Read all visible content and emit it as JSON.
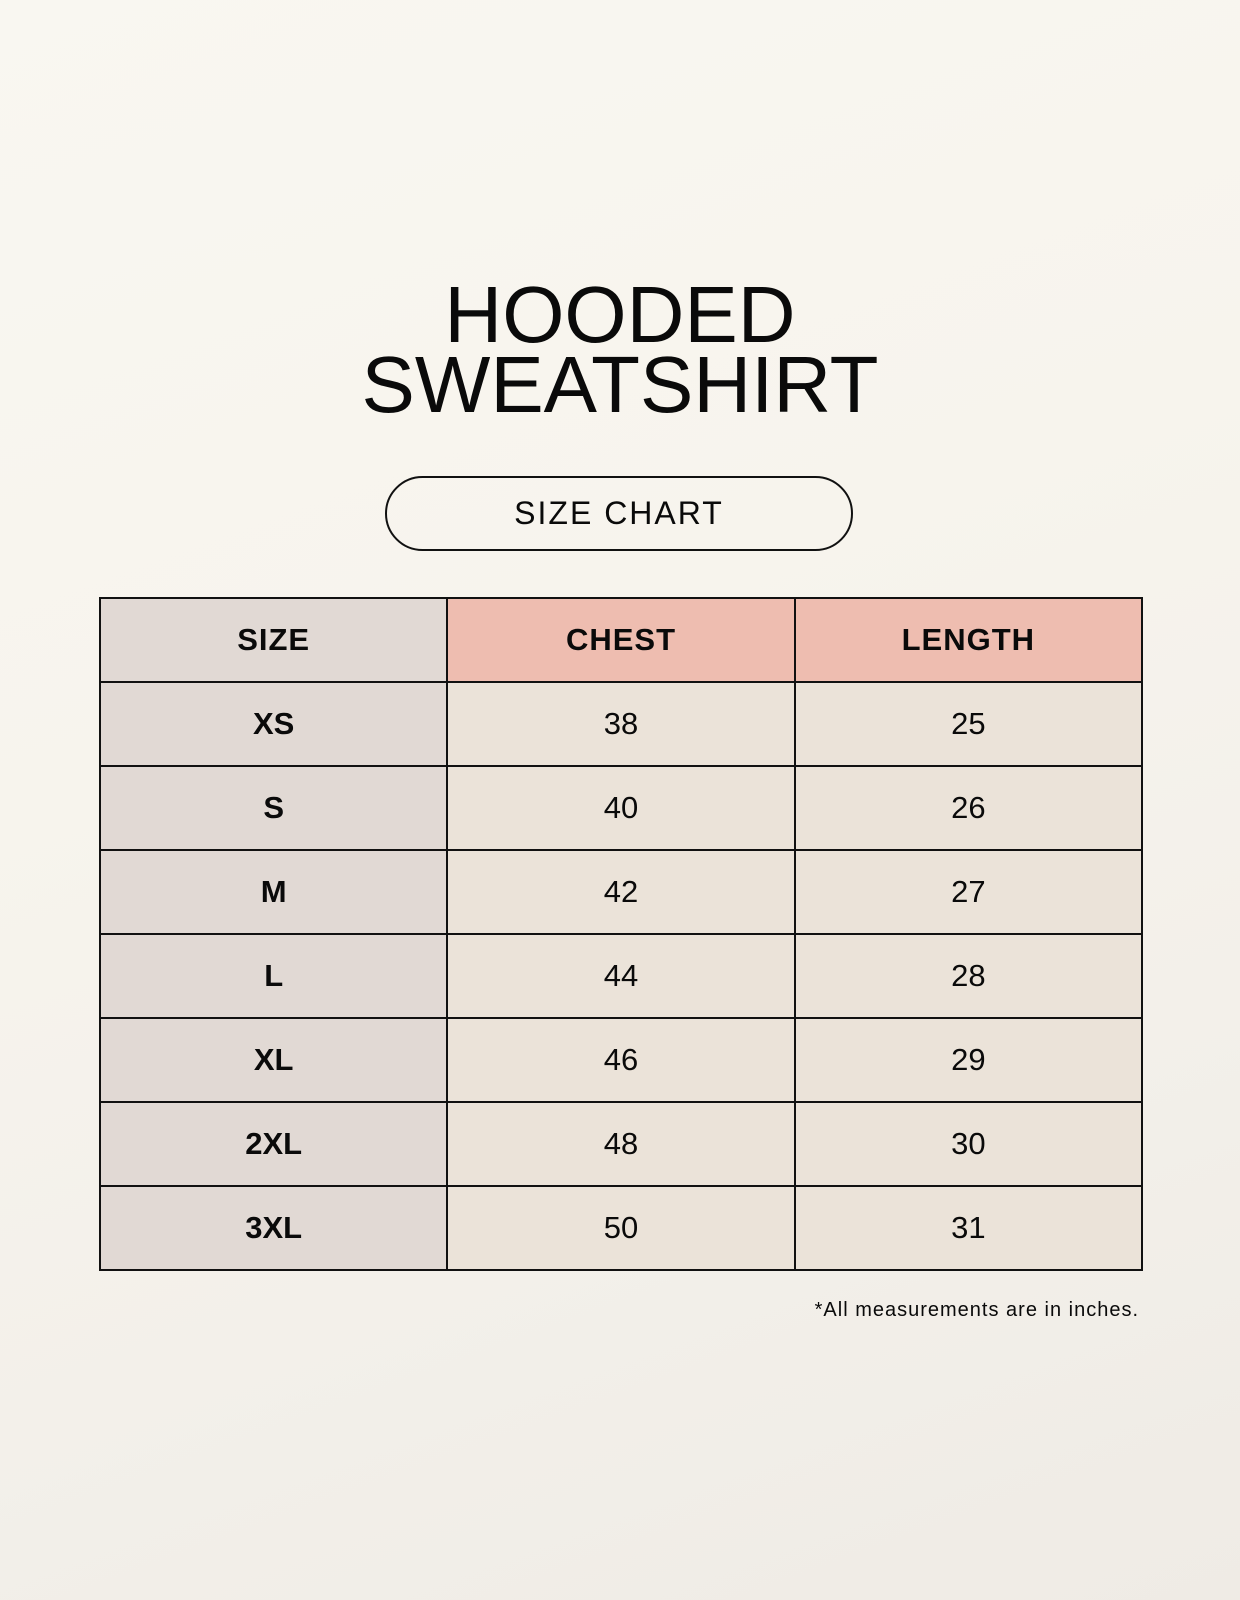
{
  "title": {
    "line1": "HOODED",
    "line2": "SWEATSHIRT"
  },
  "subtitle": "SIZE CHART",
  "table": {
    "headers": [
      "SIZE",
      "CHEST",
      "LENGTH"
    ],
    "rows": [
      [
        "XS",
        "38",
        "25"
      ],
      [
        "S",
        "40",
        "26"
      ],
      [
        "M",
        "42",
        "27"
      ],
      [
        "L",
        "44",
        "28"
      ],
      [
        "XL",
        "46",
        "29"
      ],
      [
        "2XL",
        "48",
        "30"
      ],
      [
        "3XL",
        "50",
        "31"
      ]
    ]
  },
  "note": "*All measurements are in inches.",
  "colors": {
    "size_column": "#e1d9d4",
    "header_accent": "#eebdb0",
    "value_cells": "#ebe3d9"
  }
}
